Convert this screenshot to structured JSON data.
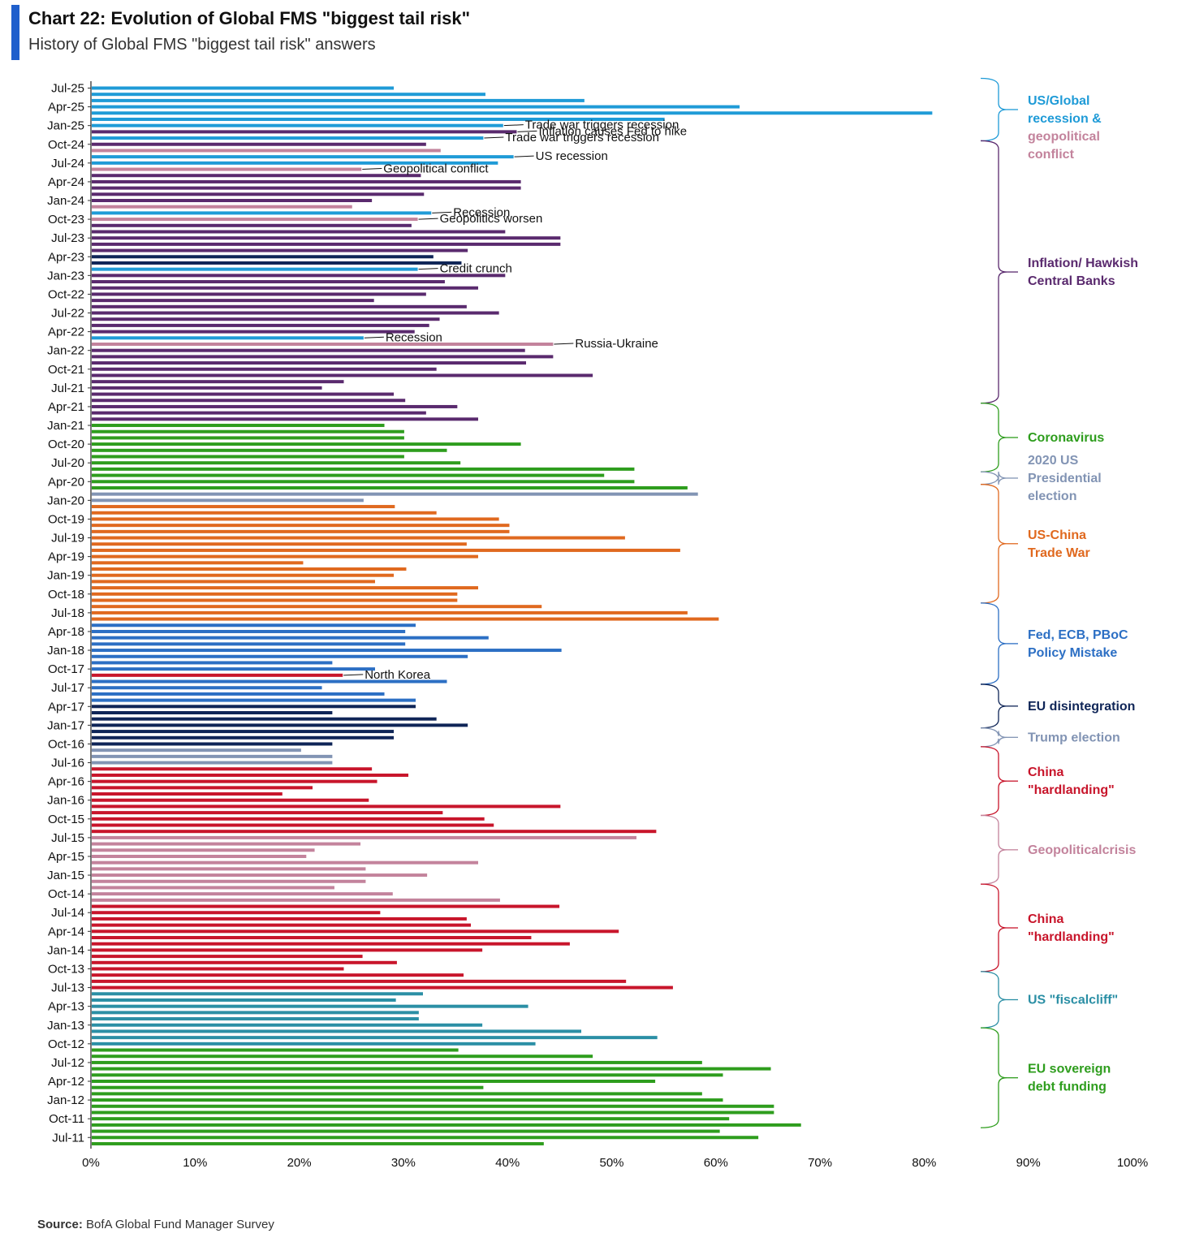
{
  "header": {
    "title": "Chart 22: Evolution of Global FMS \"biggest tail risk\"",
    "subtitle": "History of Global FMS \"biggest tail risk\" answers"
  },
  "footer": {
    "source_label": "Source:",
    "source_text": "BofA Global Fund Manager Survey"
  },
  "chart_data": {
    "type": "bar",
    "orientation": "horizontal",
    "title": "Chart 22: Evolution of Global FMS \"biggest tail risk\"",
    "subtitle": "History of Global FMS \"biggest tail risk\" answers",
    "xlim": [
      0,
      100
    ],
    "x_ticks": [
      "0%",
      "10%",
      "20%",
      "30%",
      "40%",
      "50%",
      "60%",
      "70%",
      "80%",
      "90%",
      "100%"
    ],
    "y_ticks": [
      "Jul-25",
      "Apr-25",
      "Jan-25",
      "Oct-24",
      "Jul-24",
      "Apr-24",
      "Jan-24",
      "Oct-23",
      "Jul-23",
      "Apr-23",
      "Jan-23",
      "Oct-22",
      "Jul-22",
      "Apr-22",
      "Jan-22",
      "Oct-21",
      "Jul-21",
      "Apr-21",
      "Jan-21",
      "Oct-20",
      "Jul-20",
      "Apr-20",
      "Jan-20",
      "Oct-19",
      "Jul-19",
      "Apr-19",
      "Jan-19",
      "Oct-18",
      "Jul-18",
      "Apr-18",
      "Jan-18",
      "Oct-17",
      "Jul-17",
      "Apr-17",
      "Jan-17",
      "Oct-16",
      "Jul-16",
      "Apr-16",
      "Jan-16",
      "Oct-15",
      "Jul-15",
      "Apr-15",
      "Jan-15",
      "Oct-14",
      "Jul-14",
      "Apr-14",
      "Jan-14",
      "Oct-13",
      "Jul-13",
      "Apr-13",
      "Jan-13",
      "Oct-12",
      "Jul-12",
      "Apr-12",
      "Jan-12",
      "Oct-11",
      "Jul-11"
    ],
    "grid": false,
    "colors": {
      "sky": "#1f9bd7",
      "pink": "#c3839c",
      "purple": "#5a2a6e",
      "green": "#2e9d1d",
      "gray": "#8294b4",
      "orange": "#e0691f",
      "blue": "#2c6fc4",
      "navy": "#0f2557",
      "red": "#c8152b",
      "teal": "#2b8fa5"
    },
    "bars": [
      {
        "v": 29,
        "c": "sky"
      },
      {
        "v": 37.8,
        "c": "sky"
      },
      {
        "v": 47.3,
        "c": "sky"
      },
      {
        "v": 62.2,
        "c": "sky"
      },
      {
        "v": 80.7,
        "c": "sky"
      },
      {
        "v": 55,
        "c": "sky"
      },
      {
        "v": 39.5,
        "c": "sky"
      },
      {
        "v": 40.8,
        "c": "purple"
      },
      {
        "v": 37.6,
        "c": "sky"
      },
      {
        "v": 32.1,
        "c": "purple"
      },
      {
        "v": 33.5,
        "c": "pink"
      },
      {
        "v": 40.5,
        "c": "sky"
      },
      {
        "v": 39,
        "c": "sky"
      },
      {
        "v": 25.9,
        "c": "pink"
      },
      {
        "v": 31.6,
        "c": "purple"
      },
      {
        "v": 41.2,
        "c": "purple"
      },
      {
        "v": 41.2,
        "c": "purple"
      },
      {
        "v": 31.9,
        "c": "purple"
      },
      {
        "v": 26.9,
        "c": "purple"
      },
      {
        "v": 25,
        "c": "pink"
      },
      {
        "v": 32.6,
        "c": "sky"
      },
      {
        "v": 31.3,
        "c": "pink"
      },
      {
        "v": 30.7,
        "c": "purple"
      },
      {
        "v": 39.7,
        "c": "purple"
      },
      {
        "v": 45,
        "c": "purple"
      },
      {
        "v": 45,
        "c": "purple"
      },
      {
        "v": 36.1,
        "c": "purple"
      },
      {
        "v": 32.8,
        "c": "navy"
      },
      {
        "v": 35.5,
        "c": "navy"
      },
      {
        "v": 31.3,
        "c": "sky"
      },
      {
        "v": 39.7,
        "c": "purple"
      },
      {
        "v": 33.9,
        "c": "purple"
      },
      {
        "v": 37.1,
        "c": "purple"
      },
      {
        "v": 32.1,
        "c": "purple"
      },
      {
        "v": 27.1,
        "c": "purple"
      },
      {
        "v": 36,
        "c": "purple"
      },
      {
        "v": 39.1,
        "c": "purple"
      },
      {
        "v": 33.4,
        "c": "purple"
      },
      {
        "v": 32.4,
        "c": "purple"
      },
      {
        "v": 31,
        "c": "purple"
      },
      {
        "v": 26.1,
        "c": "sky"
      },
      {
        "v": 44.3,
        "c": "pink"
      },
      {
        "v": 41.6,
        "c": "purple"
      },
      {
        "v": 44.3,
        "c": "purple"
      },
      {
        "v": 41.7,
        "c": "purple"
      },
      {
        "v": 33.1,
        "c": "purple"
      },
      {
        "v": 48.1,
        "c": "purple"
      },
      {
        "v": 24.2,
        "c": "purple"
      },
      {
        "v": 22.1,
        "c": "purple"
      },
      {
        "v": 29,
        "c": "purple"
      },
      {
        "v": 30.1,
        "c": "purple"
      },
      {
        "v": 35.1,
        "c": "purple"
      },
      {
        "v": 32.1,
        "c": "purple"
      },
      {
        "v": 37.1,
        "c": "purple"
      },
      {
        "v": 28.1,
        "c": "green"
      },
      {
        "v": 30,
        "c": "green"
      },
      {
        "v": 30,
        "c": "green"
      },
      {
        "v": 41.2,
        "c": "green"
      },
      {
        "v": 34.1,
        "c": "green"
      },
      {
        "v": 30,
        "c": "green"
      },
      {
        "v": 35.4,
        "c": "green"
      },
      {
        "v": 52.1,
        "c": "green"
      },
      {
        "v": 49.2,
        "c": "green"
      },
      {
        "v": 52.1,
        "c": "green"
      },
      {
        "v": 57.2,
        "c": "green"
      },
      {
        "v": 58.2,
        "c": "gray"
      },
      {
        "v": 26.1,
        "c": "gray"
      },
      {
        "v": 29.1,
        "c": "orange"
      },
      {
        "v": 33.1,
        "c": "orange"
      },
      {
        "v": 39.1,
        "c": "orange"
      },
      {
        "v": 40.1,
        "c": "orange"
      },
      {
        "v": 40.1,
        "c": "orange"
      },
      {
        "v": 51.2,
        "c": "orange"
      },
      {
        "v": 36,
        "c": "orange"
      },
      {
        "v": 56.5,
        "c": "orange"
      },
      {
        "v": 37.1,
        "c": "orange"
      },
      {
        "v": 20.3,
        "c": "orange"
      },
      {
        "v": 30.2,
        "c": "orange"
      },
      {
        "v": 29,
        "c": "orange"
      },
      {
        "v": 27.2,
        "c": "orange"
      },
      {
        "v": 37.1,
        "c": "orange"
      },
      {
        "v": 35.1,
        "c": "orange"
      },
      {
        "v": 35.1,
        "c": "orange"
      },
      {
        "v": 43.2,
        "c": "orange"
      },
      {
        "v": 57.2,
        "c": "orange"
      },
      {
        "v": 60.2,
        "c": "orange"
      },
      {
        "v": 31.1,
        "c": "blue"
      },
      {
        "v": 30.1,
        "c": "blue"
      },
      {
        "v": 38.1,
        "c": "blue"
      },
      {
        "v": 30.1,
        "c": "blue"
      },
      {
        "v": 45.1,
        "c": "blue"
      },
      {
        "v": 36.1,
        "c": "blue"
      },
      {
        "v": 23.1,
        "c": "blue"
      },
      {
        "v": 27.2,
        "c": "blue"
      },
      {
        "v": 24.1,
        "c": "red"
      },
      {
        "v": 34.1,
        "c": "blue"
      },
      {
        "v": 22.1,
        "c": "blue"
      },
      {
        "v": 28.1,
        "c": "blue"
      },
      {
        "v": 31.1,
        "c": "blue"
      },
      {
        "v": 31.1,
        "c": "navy"
      },
      {
        "v": 23.1,
        "c": "navy"
      },
      {
        "v": 33.1,
        "c": "navy"
      },
      {
        "v": 36.1,
        "c": "navy"
      },
      {
        "v": 29,
        "c": "navy"
      },
      {
        "v": 29,
        "c": "navy"
      },
      {
        "v": 23.1,
        "c": "navy"
      },
      {
        "v": 20.1,
        "c": "gray"
      },
      {
        "v": 23.1,
        "c": "gray"
      },
      {
        "v": 23.1,
        "c": "gray"
      },
      {
        "v": 26.9,
        "c": "red"
      },
      {
        "v": 30.4,
        "c": "red"
      },
      {
        "v": 27.4,
        "c": "red"
      },
      {
        "v": 21.2,
        "c": "red"
      },
      {
        "v": 18.3,
        "c": "red"
      },
      {
        "v": 26.6,
        "c": "red"
      },
      {
        "v": 45,
        "c": "red"
      },
      {
        "v": 33.7,
        "c": "red"
      },
      {
        "v": 37.7,
        "c": "red"
      },
      {
        "v": 38.6,
        "c": "red"
      },
      {
        "v": 54.2,
        "c": "red"
      },
      {
        "v": 52.3,
        "c": "pink"
      },
      {
        "v": 25.8,
        "c": "pink"
      },
      {
        "v": 21.4,
        "c": "pink"
      },
      {
        "v": 20.6,
        "c": "pink"
      },
      {
        "v": 37.1,
        "c": "pink"
      },
      {
        "v": 26.3,
        "c": "pink"
      },
      {
        "v": 32.2,
        "c": "pink"
      },
      {
        "v": 26.3,
        "c": "pink"
      },
      {
        "v": 23.3,
        "c": "pink"
      },
      {
        "v": 28.9,
        "c": "pink"
      },
      {
        "v": 39.2,
        "c": "pink"
      },
      {
        "v": 44.9,
        "c": "red"
      },
      {
        "v": 27.7,
        "c": "red"
      },
      {
        "v": 36,
        "c": "red"
      },
      {
        "v": 36.4,
        "c": "red"
      },
      {
        "v": 50.6,
        "c": "red"
      },
      {
        "v": 42.2,
        "c": "red"
      },
      {
        "v": 45.9,
        "c": "red"
      },
      {
        "v": 37.5,
        "c": "red"
      },
      {
        "v": 26,
        "c": "red"
      },
      {
        "v": 29.3,
        "c": "red"
      },
      {
        "v": 24.2,
        "c": "red"
      },
      {
        "v": 35.7,
        "c": "red"
      },
      {
        "v": 51.3,
        "c": "red"
      },
      {
        "v": 55.8,
        "c": "red"
      },
      {
        "v": 31.8,
        "c": "teal"
      },
      {
        "v": 29.2,
        "c": "teal"
      },
      {
        "v": 41.9,
        "c": "teal"
      },
      {
        "v": 31.4,
        "c": "teal"
      },
      {
        "v": 31.4,
        "c": "teal"
      },
      {
        "v": 37.5,
        "c": "teal"
      },
      {
        "v": 47,
        "c": "teal"
      },
      {
        "v": 54.3,
        "c": "teal"
      },
      {
        "v": 42.6,
        "c": "teal"
      },
      {
        "v": 35.2,
        "c": "green"
      },
      {
        "v": 48.1,
        "c": "green"
      },
      {
        "v": 58.6,
        "c": "green"
      },
      {
        "v": 65.2,
        "c": "green"
      },
      {
        "v": 60.6,
        "c": "green"
      },
      {
        "v": 54.1,
        "c": "green"
      },
      {
        "v": 37.6,
        "c": "green"
      },
      {
        "v": 58.6,
        "c": "green"
      },
      {
        "v": 60.6,
        "c": "green"
      },
      {
        "v": 65.5,
        "c": "green"
      },
      {
        "v": 65.5,
        "c": "green"
      },
      {
        "v": 61.2,
        "c": "green"
      },
      {
        "v": 68.1,
        "c": "green"
      },
      {
        "v": 60.3,
        "c": "green"
      },
      {
        "v": 64,
        "c": "green"
      },
      {
        "v": 43.4,
        "c": "green"
      }
    ],
    "annotations": [
      {
        "text": "Trade war triggers recession",
        "bar": 6
      },
      {
        "text": "Inflation causes Fed to hike",
        "bar": 7
      },
      {
        "text": "Trade war triggers recession",
        "bar": 8
      },
      {
        "text": "US recession",
        "bar": 11
      },
      {
        "text": "Geopolitical conflict",
        "bar": 13
      },
      {
        "text": "Recession",
        "bar": 20
      },
      {
        "text": "Geopolitics worsen",
        "bar": 21
      },
      {
        "text": "Credit crunch",
        "bar": 29
      },
      {
        "text": "Recession",
        "bar": 40
      },
      {
        "text": "Russia-Ukraine",
        "bar": 41
      },
      {
        "text": "North Korea",
        "bar": 94
      }
    ],
    "legend": [
      {
        "lines": [
          "US/Global",
          "recession &"
        ],
        "color": "sky",
        "from": 0,
        "to": 10
      },
      {
        "lines": [
          "geopolitical",
          "conflict"
        ],
        "color": "pink",
        "from": -1,
        "to": -1
      },
      {
        "lines": [
          "Inflation/ Hawkish",
          "Central Banks"
        ],
        "color": "purple",
        "from": 10,
        "to": 52
      },
      {
        "lines": [
          "Coronavirus"
        ],
        "color": "green",
        "from": 52,
        "to": 63
      },
      {
        "lines": [
          "2020 US",
          "Presidential",
          "election"
        ],
        "color": "gray",
        "from": 63,
        "to": 65
      },
      {
        "lines": [
          "US-China",
          "Trade War"
        ],
        "color": "orange",
        "from": 65,
        "to": 84
      },
      {
        "lines": [
          "Fed, ECB, PBoC",
          "Policy Mistake"
        ],
        "color": "blue",
        "from": 84,
        "to": 97
      },
      {
        "lines": [
          "EU disintegration"
        ],
        "color": "navy",
        "from": 97,
        "to": 104
      },
      {
        "lines": [
          "Trump election"
        ],
        "color": "gray",
        "from": 104,
        "to": 107
      },
      {
        "lines": [
          "China",
          "\"hardlanding\""
        ],
        "color": "red",
        "from": 107,
        "to": 118
      },
      {
        "lines": [
          "Geopoliticalcrisis"
        ],
        "color": "pink",
        "from": 118,
        "to": 129
      },
      {
        "lines": [
          "China",
          "\"hardlanding\""
        ],
        "color": "red",
        "from": 129,
        "to": 143
      },
      {
        "lines": [
          "US \"fiscalcliff\""
        ],
        "color": "teal",
        "from": 143,
        "to": 152
      },
      {
        "lines": [
          "EU sovereign",
          "debt funding"
        ],
        "color": "green",
        "from": 152,
        "to": 168
      }
    ]
  }
}
